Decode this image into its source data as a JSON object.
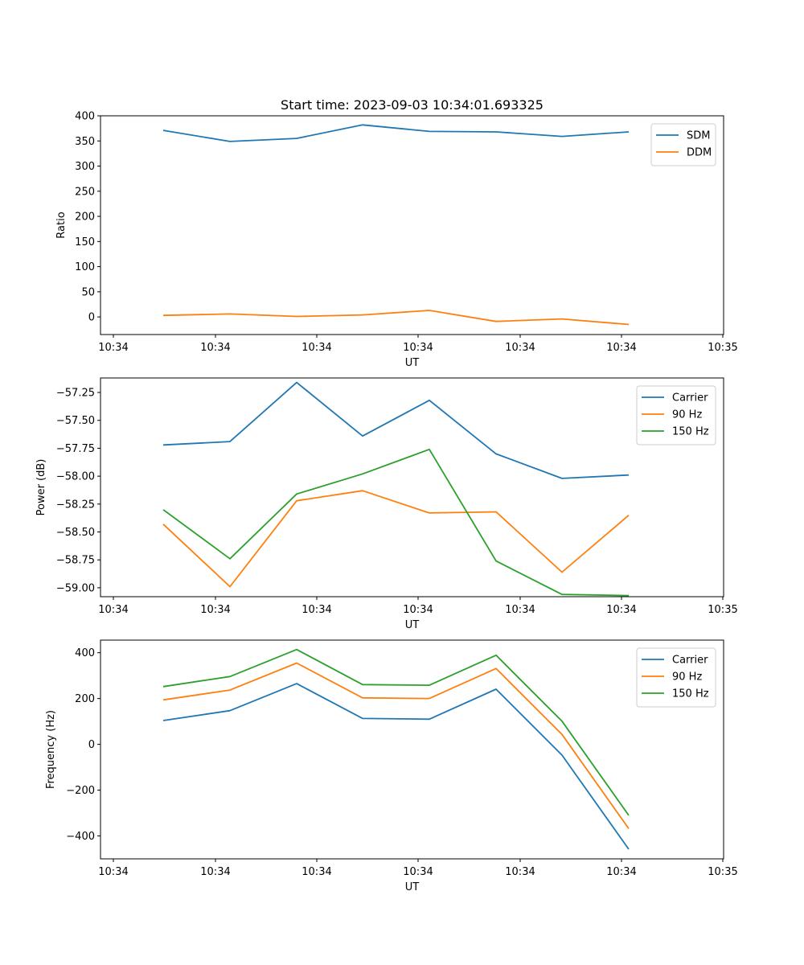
{
  "figure_title": "Start time: 2023-09-03 10:34:01.693325",
  "colors": {
    "blue": "#1f77b4",
    "orange": "#ff7f0e",
    "green": "#2ca02c"
  },
  "chart_data": [
    {
      "type": "line",
      "title": "Start time: 2023-09-03 10:34:01.693325",
      "xlabel": "UT",
      "ylabel": "Ratio",
      "x_tick_labels": [
        "10:34",
        "10:34",
        "10:34",
        "10:34",
        "10:34",
        "10:34",
        "10:35"
      ],
      "y_ticks": [
        0,
        50,
        100,
        150,
        200,
        250,
        300,
        350,
        400
      ],
      "y_tick_labels": [
        "0",
        "50",
        "100",
        "150",
        "200",
        "250",
        "300",
        "350",
        "400"
      ],
      "ylim": [
        -35,
        400
      ],
      "legend_position": "top-right",
      "series": [
        {
          "name": "SDM",
          "color": "#1f77b4",
          "values": [
            371,
            349,
            355,
            382,
            369,
            368,
            359,
            368
          ]
        },
        {
          "name": "DDM",
          "color": "#ff7f0e",
          "values": [
            3,
            6,
            1,
            4,
            13,
            -9,
            -4,
            -15
          ]
        }
      ]
    },
    {
      "type": "line",
      "xlabel": "UT",
      "ylabel": "Power (dB)",
      "x_tick_labels": [
        "10:34",
        "10:34",
        "10:34",
        "10:34",
        "10:34",
        "10:34",
        "10:35"
      ],
      "y_ticks": [
        -59.0,
        -58.75,
        -58.5,
        -58.25,
        -58.0,
        -57.75,
        -57.5,
        -57.25
      ],
      "y_tick_labels": [
        "−59.00",
        "−58.75",
        "−58.50",
        "−58.25",
        "−58.00",
        "−57.75",
        "−57.50",
        "−57.25"
      ],
      "ylim": [
        -59.08,
        -57.12
      ],
      "legend_position": "top-right",
      "series": [
        {
          "name": "Carrier",
          "color": "#1f77b4",
          "values": [
            -57.72,
            -57.69,
            -57.16,
            -57.64,
            -57.32,
            -57.8,
            -58.02,
            -57.99
          ]
        },
        {
          "name": "90 Hz",
          "color": "#ff7f0e",
          "values": [
            -58.43,
            -58.99,
            -58.22,
            -58.13,
            -58.33,
            -58.32,
            -58.86,
            -58.35
          ]
        },
        {
          "name": "150 Hz",
          "color": "#2ca02c",
          "values": [
            -58.3,
            -58.74,
            -58.16,
            -57.98,
            -57.76,
            -58.76,
            -59.06,
            -59.07
          ]
        }
      ]
    },
    {
      "type": "line",
      "xlabel": "UT",
      "ylabel": "Frequency (Hz)",
      "x_tick_labels": [
        "10:34",
        "10:34",
        "10:34",
        "10:34",
        "10:34",
        "10:34",
        "10:35"
      ],
      "y_ticks": [
        -400,
        -200,
        0,
        200,
        400
      ],
      "y_tick_labels": [
        "−400",
        "−200",
        "0",
        "200",
        "400"
      ],
      "ylim": [
        -500,
        455
      ],
      "legend_position": "top-right",
      "series": [
        {
          "name": "Carrier",
          "color": "#1f77b4",
          "values": [
            104,
            147,
            265,
            113,
            110,
            241,
            -47,
            -458
          ]
        },
        {
          "name": "90 Hz",
          "color": "#ff7f0e",
          "values": [
            194,
            237,
            355,
            203,
            200,
            331,
            43,
            -368
          ]
        },
        {
          "name": "150 Hz",
          "color": "#2ca02c",
          "values": [
            252,
            296,
            414,
            261,
            258,
            389,
            101,
            -310
          ]
        }
      ]
    }
  ]
}
